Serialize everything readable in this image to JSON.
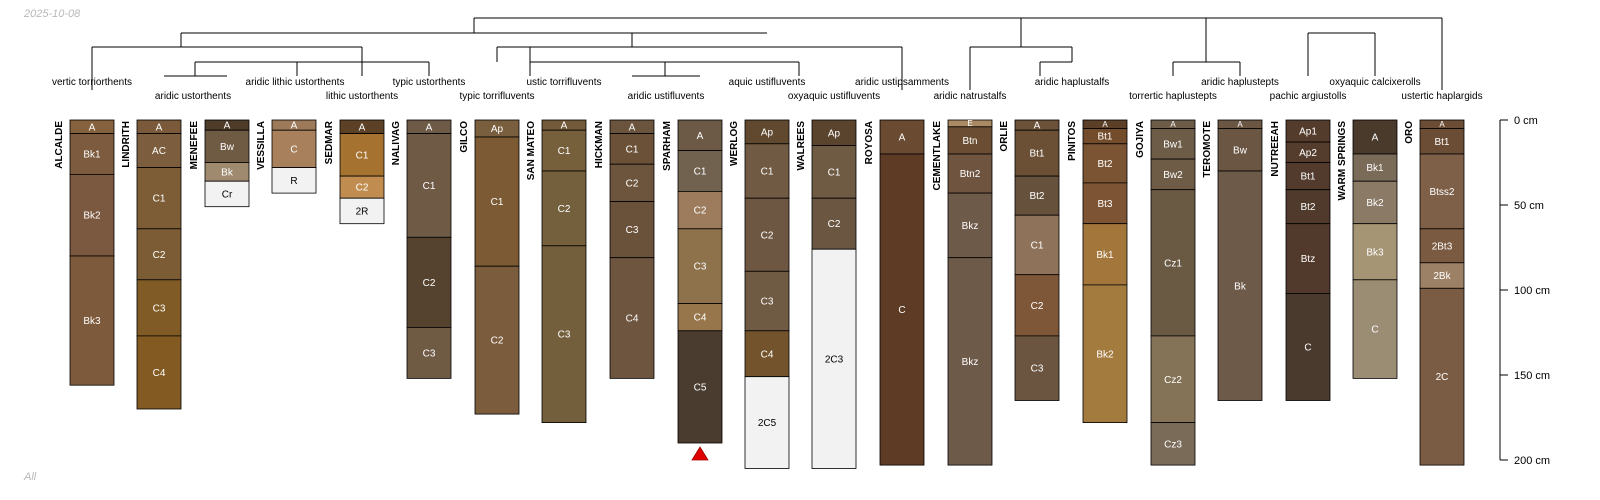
{
  "date_label": "2025-10-08",
  "corner_label": "All",
  "chart_data": {
    "type": "soil-profile-sketch",
    "depth_unit": "cm",
    "depth_range": [
      0,
      200
    ],
    "depth_ticks": [
      0,
      50,
      100,
      150,
      200
    ],
    "depth_tick_labels": [
      "0 cm",
      "50 cm",
      "100 cm",
      "150 cm",
      "200 cm"
    ],
    "taxa_labels": [
      "vertic torriorthents",
      "aridic ustorthents",
      "aridic lithic ustorthents",
      "lithic ustorthents",
      "typic ustorthents",
      "typic torrifluvents",
      "ustic torrifluvents",
      "aridic ustifluvents",
      "aquic ustifluvents",
      "oxyaquic ustifluvents",
      "aridic ustipsamments",
      "aridic natrustalfs",
      "aridic haplustalfs",
      "torrertic haplustepts",
      "aridic haplustepts",
      "pachic argiustolls",
      "oxyaquic calcixerolls",
      "ustertic haplargids"
    ],
    "profiles": [
      {
        "name": "ALCALDE",
        "horizons": [
          {
            "name": "A",
            "top": 0,
            "bottom": 8,
            "color": "#85613d"
          },
          {
            "name": "Bk1",
            "top": 8,
            "bottom": 32,
            "color": "#7c5b3e"
          },
          {
            "name": "Bk2",
            "top": 32,
            "bottom": 80,
            "color": "#7b5840"
          },
          {
            "name": "Bk3",
            "top": 80,
            "bottom": 156,
            "color": "#7e5a3c"
          }
        ]
      },
      {
        "name": "LINDRITH",
        "horizons": [
          {
            "name": "A",
            "top": 0,
            "bottom": 8,
            "color": "#7a5a3a"
          },
          {
            "name": "AC",
            "top": 8,
            "bottom": 28,
            "color": "#7c5e3e"
          },
          {
            "name": "C1",
            "top": 28,
            "bottom": 64,
            "color": "#7d5d36"
          },
          {
            "name": "C2",
            "top": 64,
            "bottom": 94,
            "color": "#7c5c34"
          },
          {
            "name": "C3",
            "top": 94,
            "bottom": 127,
            "color": "#805b26"
          },
          {
            "name": "C4",
            "top": 127,
            "bottom": 170,
            "color": "#835b22"
          }
        ]
      },
      {
        "name": "MENEFEE",
        "horizons": [
          {
            "name": "A",
            "top": 0,
            "bottom": 6,
            "color": "#4e3b28"
          },
          {
            "name": "Bw",
            "top": 6,
            "bottom": 25,
            "color": "#6f5a44"
          },
          {
            "name": "Bk",
            "top": 25,
            "bottom": 36,
            "color": "#a08a6f"
          },
          {
            "name": "Cr",
            "top": 36,
            "bottom": 51,
            "color": "#f2f2f2"
          }
        ]
      },
      {
        "name": "VESSILLA",
        "horizons": [
          {
            "name": "A",
            "top": 0,
            "bottom": 6,
            "color": "#9c7a5a"
          },
          {
            "name": "C",
            "top": 6,
            "bottom": 28,
            "color": "#a8805b"
          },
          {
            "name": "R",
            "top": 28,
            "bottom": 43,
            "color": "#f2f2f2"
          }
        ]
      },
      {
        "name": "SEDMAR",
        "horizons": [
          {
            "name": "A",
            "top": 0,
            "bottom": 8,
            "color": "#5c4127"
          },
          {
            "name": "C1",
            "top": 8,
            "bottom": 33,
            "color": "#a6722f"
          },
          {
            "name": "C2",
            "top": 33,
            "bottom": 46,
            "color": "#c08c4f"
          },
          {
            "name": "2R",
            "top": 46,
            "bottom": 61,
            "color": "#f2f2f2"
          }
        ]
      },
      {
        "name": "NALIVAG",
        "horizons": [
          {
            "name": "A",
            "top": 0,
            "bottom": 8,
            "color": "#6e5b47"
          },
          {
            "name": "C1",
            "top": 8,
            "bottom": 69,
            "color": "#6f5a45"
          },
          {
            "name": "C2",
            "top": 69,
            "bottom": 122,
            "color": "#55432f"
          },
          {
            "name": "C3",
            "top": 122,
            "bottom": 152,
            "color": "#6f5a44"
          }
        ]
      },
      {
        "name": "GILCO",
        "horizons": [
          {
            "name": "Ap",
            "top": 0,
            "bottom": 10,
            "color": "#7a5f3f"
          },
          {
            "name": "C1",
            "top": 10,
            "bottom": 86,
            "color": "#7b5a34"
          },
          {
            "name": "C2",
            "top": 86,
            "bottom": 173,
            "color": "#7b5d3d"
          }
        ]
      },
      {
        "name": "SAN MATEO",
        "horizons": [
          {
            "name": "A",
            "top": 0,
            "bottom": 6,
            "color": "#735a3a"
          },
          {
            "name": "C1",
            "top": 6,
            "bottom": 30,
            "color": "#76603c"
          },
          {
            "name": "C2",
            "top": 30,
            "bottom": 74,
            "color": "#74603c"
          },
          {
            "name": "C3",
            "top": 74,
            "bottom": 178,
            "color": "#735f3c"
          }
        ]
      },
      {
        "name": "HICKMAN",
        "horizons": [
          {
            "name": "A",
            "top": 0,
            "bottom": 8,
            "color": "#6b543d"
          },
          {
            "name": "C1",
            "top": 8,
            "bottom": 26,
            "color": "#6b5138"
          },
          {
            "name": "C2",
            "top": 26,
            "bottom": 48,
            "color": "#6d553d"
          },
          {
            "name": "C3",
            "top": 48,
            "bottom": 81,
            "color": "#6a513a"
          },
          {
            "name": "C4",
            "top": 81,
            "bottom": 152,
            "color": "#6d553f"
          }
        ]
      },
      {
        "name": "SPARHAM",
        "horizons": [
          {
            "name": "A",
            "top": 0,
            "bottom": 18,
            "color": "#6c5a47"
          },
          {
            "name": "C1",
            "top": 18,
            "bottom": 42,
            "color": "#716250"
          },
          {
            "name": "C2",
            "top": 42,
            "bottom": 64,
            "color": "#9c7c5c"
          },
          {
            "name": "C3",
            "top": 64,
            "bottom": 108,
            "color": "#8d724c"
          },
          {
            "name": "C4",
            "top": 108,
            "bottom": 124,
            "color": "#98764b"
          },
          {
            "name": "C5",
            "top": 124,
            "bottom": 190,
            "color": "#4a3d30"
          }
        ],
        "truncated": true
      },
      {
        "name": "WERLOG",
        "horizons": [
          {
            "name": "Ap",
            "top": 0,
            "bottom": 14,
            "color": "#60492f"
          },
          {
            "name": "C1",
            "top": 14,
            "bottom": 46,
            "color": "#715a43"
          },
          {
            "name": "C2",
            "top": 46,
            "bottom": 89,
            "color": "#6d5742"
          },
          {
            "name": "C3",
            "top": 89,
            "bottom": 124,
            "color": "#6f5a43"
          },
          {
            "name": "C4",
            "top": 124,
            "bottom": 151,
            "color": "#73532c"
          },
          {
            "name": "2C5",
            "top": 151,
            "bottom": 205,
            "color": "#f2f2f2"
          }
        ]
      },
      {
        "name": "WALREES",
        "horizons": [
          {
            "name": "Ap",
            "top": 0,
            "bottom": 15,
            "color": "#5a442d"
          },
          {
            "name": "C1",
            "top": 15,
            "bottom": 46,
            "color": "#6f5a44"
          },
          {
            "name": "C2",
            "top": 46,
            "bottom": 76,
            "color": "#6b5642"
          },
          {
            "name": "2C3",
            "top": 76,
            "bottom": 205,
            "color": "#f2f2f2"
          }
        ]
      },
      {
        "name": "ROYOSA",
        "horizons": [
          {
            "name": "A",
            "top": 0,
            "bottom": 20,
            "color": "#6b4a32"
          },
          {
            "name": "C",
            "top": 20,
            "bottom": 203,
            "color": "#5e3b25"
          }
        ]
      },
      {
        "name": "CEMENTLAKE",
        "horizons": [
          {
            "name": "E",
            "top": 0,
            "bottom": 4,
            "color": "#a98a65"
          },
          {
            "name": "Btn",
            "top": 4,
            "bottom": 20,
            "color": "#6a4d32"
          },
          {
            "name": "Btn2",
            "top": 20,
            "bottom": 43,
            "color": "#6f5440"
          },
          {
            "name": "Bkz",
            "top": 43,
            "bottom": 81,
            "color": "#6e5a49"
          },
          {
            "name": "Bkz",
            "top": 81,
            "bottom": 203,
            "color": "#6e5a49"
          }
        ]
      },
      {
        "name": "ORLIE",
        "horizons": [
          {
            "name": "A",
            "top": 0,
            "bottom": 6,
            "color": "#6b5137"
          },
          {
            "name": "Bt1",
            "top": 6,
            "bottom": 33,
            "color": "#6c5035"
          },
          {
            "name": "Bt2",
            "top": 33,
            "bottom": 56,
            "color": "#66513c"
          },
          {
            "name": "C1",
            "top": 56,
            "bottom": 91,
            "color": "#8e735a"
          },
          {
            "name": "C2",
            "top": 91,
            "bottom": 127,
            "color": "#7e5739"
          },
          {
            "name": "C3",
            "top": 127,
            "bottom": 165,
            "color": "#6b5540"
          }
        ]
      },
      {
        "name": "PINITOS",
        "horizons": [
          {
            "name": "A",
            "top": 0,
            "bottom": 5,
            "color": "#5c3f27"
          },
          {
            "name": "Bt1",
            "top": 5,
            "bottom": 14,
            "color": "#734c2b"
          },
          {
            "name": "Bt2",
            "top": 14,
            "bottom": 37,
            "color": "#7b5434"
          },
          {
            "name": "Bt3",
            "top": 37,
            "bottom": 61,
            "color": "#7d5534"
          },
          {
            "name": "Bk1",
            "top": 61,
            "bottom": 97,
            "color": "#a3773c"
          },
          {
            "name": "Bk2",
            "top": 97,
            "bottom": 178,
            "color": "#a47b3f"
          }
        ]
      },
      {
        "name": "GOJIYA",
        "horizons": [
          {
            "name": "A",
            "top": 0,
            "bottom": 5,
            "color": "#6c5c48"
          },
          {
            "name": "Bw1",
            "top": 5,
            "bottom": 23,
            "color": "#6c5c48"
          },
          {
            "name": "Bw2",
            "top": 23,
            "bottom": 41,
            "color": "#6e5c47"
          },
          {
            "name": "Cz1",
            "top": 41,
            "bottom": 127,
            "color": "#6a5a44"
          },
          {
            "name": "Cz2",
            "top": 127,
            "bottom": 178,
            "color": "#847356"
          },
          {
            "name": "Cz3",
            "top": 178,
            "bottom": 203,
            "color": "#7a6a58"
          }
        ]
      },
      {
        "name": "TEROMOTE",
        "horizons": [
          {
            "name": "A",
            "top": 0,
            "bottom": 5,
            "color": "#6b5543"
          },
          {
            "name": "Bw",
            "top": 5,
            "bottom": 30,
            "color": "#6b5543"
          },
          {
            "name": "Bk",
            "top": 30,
            "bottom": 165,
            "color": "#6e5a49"
          }
        ]
      },
      {
        "name": "NUTREEAH",
        "horizons": [
          {
            "name": "Ap1",
            "top": 0,
            "bottom": 13,
            "color": "#543c2d"
          },
          {
            "name": "Ap2",
            "top": 13,
            "bottom": 25,
            "color": "#553d2d"
          },
          {
            "name": "Bt1",
            "top": 25,
            "bottom": 41,
            "color": "#523b2c"
          },
          {
            "name": "Bt2",
            "top": 41,
            "bottom": 61,
            "color": "#4f3a2c"
          },
          {
            "name": "Btz",
            "top": 61,
            "bottom": 102,
            "color": "#51392b"
          },
          {
            "name": "C",
            "top": 102,
            "bottom": 165,
            "color": "#4a3a2e"
          }
        ]
      },
      {
        "name": "WARM SPRINGS",
        "horizons": [
          {
            "name": "A",
            "top": 0,
            "bottom": 20,
            "color": "#4a3a2c"
          },
          {
            "name": "Bk1",
            "top": 20,
            "bottom": 36,
            "color": "#7a6a58"
          },
          {
            "name": "Bk2",
            "top": 36,
            "bottom": 61,
            "color": "#8a7a66"
          },
          {
            "name": "Bk3",
            "top": 61,
            "bottom": 94,
            "color": "#a59575"
          },
          {
            "name": "C",
            "top": 94,
            "bottom": 152,
            "color": "#9b8c74"
          }
        ]
      },
      {
        "name": "ORO",
        "horizons": [
          {
            "name": "A",
            "top": 0,
            "bottom": 5,
            "color": "#6b4c35"
          },
          {
            "name": "Bt1",
            "top": 5,
            "bottom": 20,
            "color": "#6b4c35"
          },
          {
            "name": "Btss2",
            "top": 20,
            "bottom": 64,
            "color": "#7e5f48"
          },
          {
            "name": "2Bt3",
            "top": 64,
            "bottom": 84,
            "color": "#7b5a42"
          },
          {
            "name": "2Bk",
            "top": 84,
            "bottom": 99,
            "color": "#9d8166"
          },
          {
            "name": "2C",
            "top": 99,
            "bottom": 203,
            "color": "#7a5c45"
          }
        ]
      }
    ]
  }
}
